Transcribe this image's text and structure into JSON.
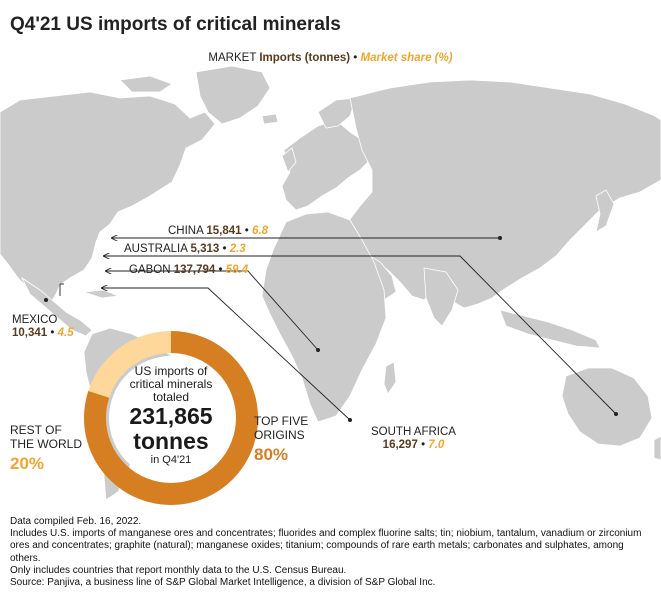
{
  "title": "Q4'21 US imports of critical minerals",
  "legend": {
    "prefix": "MARKET",
    "imports_label": "Imports (tonnes)",
    "separator": "•",
    "share_label": "Market share (%)"
  },
  "colors": {
    "land": "#cbcbcb",
    "ocean": "#ffffff",
    "import_value": "#5a3a1e",
    "share_value": "#f0a62e",
    "top_five": "#d67e22",
    "rest_of_world": "#fdd89a"
  },
  "countries": [
    {
      "name": "CHINA",
      "imports": "15,841",
      "share": "6.8"
    },
    {
      "name": "AUSTRALIA",
      "imports": "5,313",
      "share": "2.3"
    },
    {
      "name": "GABON",
      "imports": "137,794",
      "share": "59.4"
    },
    {
      "name": "MEXICO",
      "imports": "10,341",
      "share": "4.5"
    },
    {
      "name": "SOUTH AFRICA",
      "imports": "16,297",
      "share": "7.0"
    }
  ],
  "donut": {
    "line1": "US imports of",
    "line2": "critical minerals",
    "line3": "totaled",
    "total": "231,865",
    "unit": "tonnes",
    "period": "in Q4'21",
    "top_five_share": 80,
    "rest_share": 20,
    "rest_label_1": "REST OF",
    "rest_label_2": "THE WORLD",
    "rest_pct": "20%",
    "top_label_1": "TOP FIVE",
    "top_label_2": "ORIGINS",
    "top_pct": "80%"
  },
  "notes": [
    "Data compiled Feb. 16, 2022.",
    "Includes U.S. imports of manganese ores and concentrates; fluorides and complex fluorine salts; tin; niobium, tantalum, vanadium or zirconium ores and concentrates; graphite (natural); manganese oxides; titanium; compounds of rare earth metals; carbonates and sulphates, among others.",
    "Only includes countries that report monthly data to the U.S. Census Bureau.",
    "Source: Panjiva, a business line of S&P Global Market Intelligence, a division of S&P Global Inc."
  ]
}
